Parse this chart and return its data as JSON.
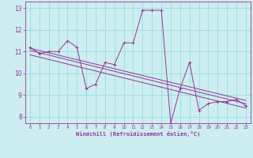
{
  "xlabel": "Windchill (Refroidissement éolien,°C)",
  "bg_color": "#cceef0",
  "grid_color": "#99dddd",
  "line_color": "#993399",
  "marker": "+",
  "xlim": [
    -0.5,
    23.5
  ],
  "ylim": [
    7.7,
    13.3
  ],
  "yticks": [
    8,
    9,
    10,
    11,
    12,
    13
  ],
  "xticks": [
    0,
    1,
    2,
    3,
    4,
    5,
    6,
    7,
    8,
    9,
    10,
    11,
    12,
    13,
    14,
    15,
    16,
    17,
    18,
    19,
    20,
    21,
    22,
    23
  ],
  "series1": [
    11.2,
    10.9,
    11.0,
    11.0,
    11.5,
    11.2,
    9.3,
    9.5,
    10.5,
    10.4,
    11.4,
    11.4,
    12.9,
    12.9,
    12.9,
    7.7,
    9.3,
    10.5,
    8.3,
    8.6,
    8.7,
    8.7,
    8.8,
    8.5
  ],
  "regression_lines": [
    {
      "x0": 0,
      "y0": 11.15,
      "x1": 23,
      "y1": 8.75
    },
    {
      "x0": 0,
      "y0": 11.05,
      "x1": 23,
      "y1": 8.6
    },
    {
      "x0": 0,
      "y0": 10.85,
      "x1": 23,
      "y1": 8.4
    }
  ]
}
